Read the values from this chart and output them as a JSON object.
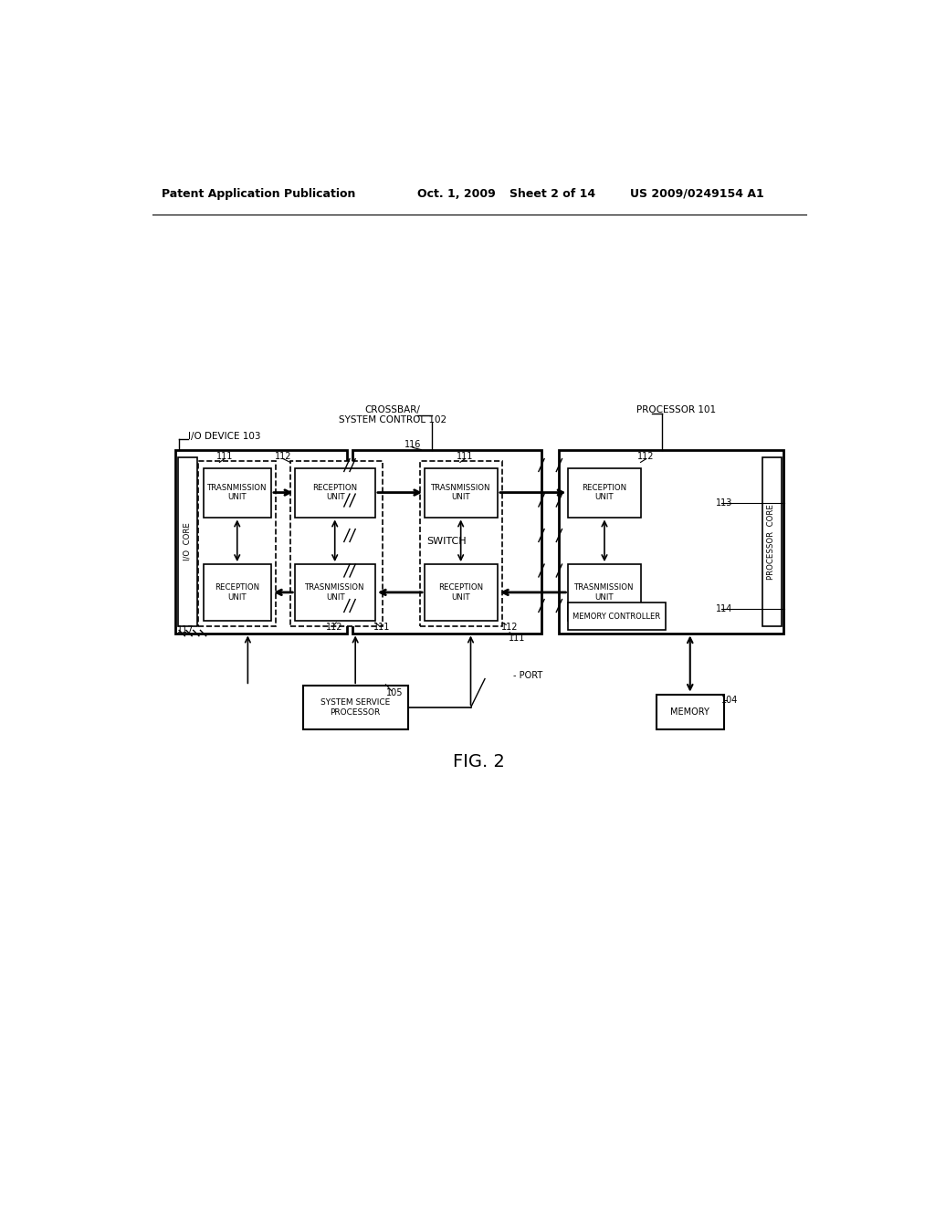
{
  "bg_color": "#ffffff",
  "header_text": "Patent Application Publication",
  "header_date": "Oct. 1, 2009",
  "header_sheet": "Sheet 2 of 14",
  "header_patent": "US 2009/0249154 A1",
  "fig_label": "FIG. 2",
  "io_device_label": "I/O DEVICE 103",
  "crossbar_label1": "CROSSBAR/",
  "crossbar_label2": "SYSTEM CONTROL 102",
  "processor_label": "PROCESSOR 101",
  "switch_label": "SWITCH",
  "system_service_label": "SYSTEM SERVICE\nPROCESSOR",
  "memory_label": "MEMORY",
  "memory_ctrl_label": "MEMORY CONTROLLER",
  "port_label": "PORT",
  "io_core_label": "I/O  CORE",
  "processor_core_label": "PROCESSOR  CORE",
  "tx_unit_label": "TRASNMISSION\nUNIT",
  "rx_unit_label": "RECEPTION\nUNIT"
}
